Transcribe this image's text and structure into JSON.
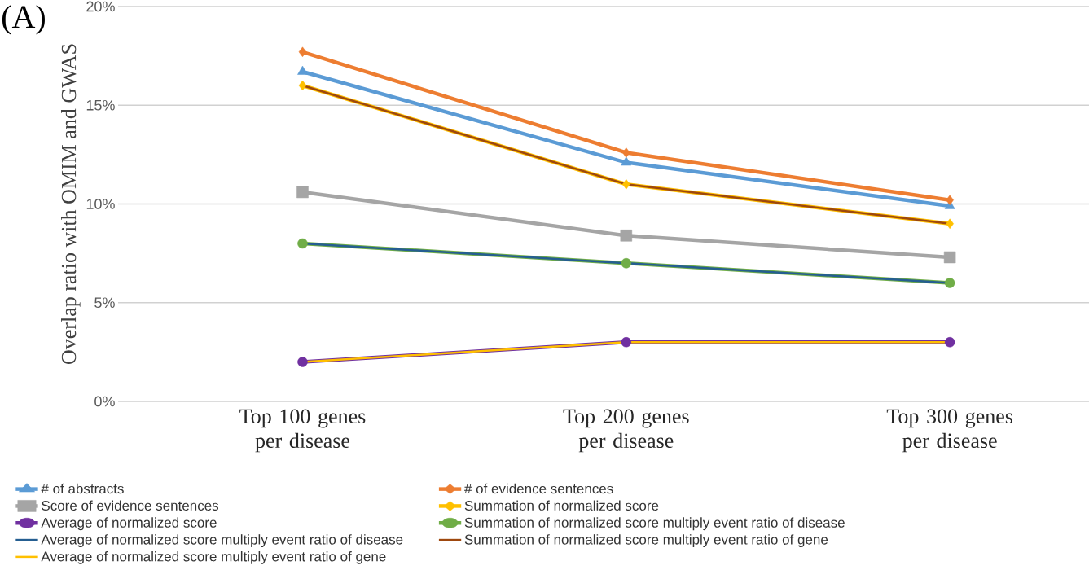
{
  "chart_data": {
    "type": "line",
    "ylabel": "Overlap ratio with OMIM and GWAS",
    "annotations": [
      "(A)"
    ],
    "categories": [
      "Top 100 genes per disease",
      "Top 200 genes per disease",
      "Top 300 genes per disease"
    ],
    "ylim": [
      0,
      20
    ],
    "yticks": [
      {
        "value": 0,
        "label": "0%"
      },
      {
        "value": 5,
        "label": "5%"
      },
      {
        "value": 10,
        "label": "10%"
      },
      {
        "value": 15,
        "label": "15%"
      },
      {
        "value": 20,
        "label": "20%"
      }
    ],
    "grid": "y",
    "legend": "bottom",
    "series": [
      {
        "name": "# of abstracts",
        "color": "#5b9bd5",
        "marker": "triangle",
        "values": [
          16.7,
          12.1,
          9.9
        ]
      },
      {
        "name": "# of evidence sentences",
        "color": "#ed7d31",
        "marker": "diamond",
        "values": [
          17.7,
          12.6,
          10.2
        ]
      },
      {
        "name": "Score of evidence sentences",
        "color": "#a5a5a5",
        "marker": "square",
        "values": [
          10.6,
          8.4,
          7.3
        ]
      },
      {
        "name": "Summation of normalized score",
        "color": "#ffc000",
        "marker": "diamond",
        "values": [
          16,
          11,
          9
        ]
      },
      {
        "name": "Average of normalized score",
        "color": "#7030a0",
        "marker": "circle",
        "values": [
          2,
          3,
          3
        ]
      },
      {
        "name": "Summation of normalized score multiply event ratio of disease",
        "color": "#70ad47",
        "marker": "circle",
        "values": [
          8,
          7,
          6
        ]
      },
      {
        "name": "Average of normalized score multiply event ratio of disease",
        "color": "#255e91",
        "marker": "none",
        "values": [
          8,
          7,
          6
        ]
      },
      {
        "name": "Summation of normalized score multiply event ratio of gene",
        "color": "#9e480e",
        "marker": "none",
        "values": [
          16,
          11,
          9
        ]
      },
      {
        "name": "Average of normalized score multiply event ratio of gene",
        "color": "#ffc000",
        "marker": "none",
        "values": [
          2,
          3,
          3
        ]
      }
    ]
  }
}
